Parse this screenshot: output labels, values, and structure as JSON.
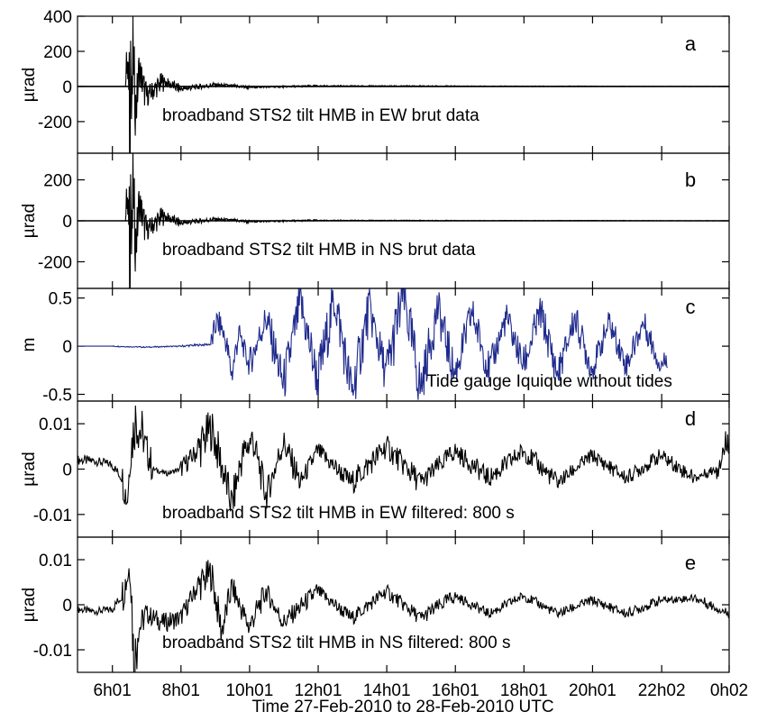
{
  "figure": {
    "xlabel": "Time 27-Feb-2010 to 28-Feb-2010 UTC",
    "xticks": [
      "6h01",
      "8h01",
      "10h01",
      "12h01",
      "14h01",
      "16h01",
      "18h01",
      "20h01",
      "22h02",
      "0h02"
    ]
  },
  "chart_data": [
    {
      "type": "line",
      "panel": "a",
      "ylabel": "µrad",
      "annotation": "broadband STS2 tilt HMB in EW brut data",
      "xlim": [
        5.0,
        24.0
      ],
      "ylim": [
        -380,
        400
      ],
      "yticks": [
        400,
        200,
        0,
        -200
      ],
      "ytick_labels": [
        "400",
        "200",
        "0",
        "-200"
      ],
      "color": "#000000",
      "series": [
        {
          "x": [
            5.0,
            6.4,
            6.45,
            6.48,
            6.5,
            6.52,
            6.55,
            6.58,
            6.62,
            6.7,
            6.8,
            7.0,
            7.5,
            8.0,
            9.0,
            10.0,
            12.0,
            16.0,
            20.0,
            24.0
          ],
          "values": [
            0,
            0,
            150,
            -200,
            370,
            -380,
            300,
            -250,
            200,
            -150,
            100,
            -60,
            30,
            -15,
            10,
            -5,
            3,
            2,
            1,
            0
          ]
        }
      ]
    },
    {
      "type": "line",
      "panel": "b",
      "ylabel": "µrad",
      "annotation": "broadband STS2 tilt HMB in NS  brut data",
      "xlim": [
        5.0,
        24.0
      ],
      "ylim": [
        -330,
        330
      ],
      "yticks": [
        200,
        0,
        -200
      ],
      "ytick_labels": [
        "200",
        "0",
        "-200"
      ],
      "color": "#000000",
      "series": [
        {
          "x": [
            5.0,
            6.4,
            6.45,
            6.48,
            6.5,
            6.52,
            6.55,
            6.58,
            6.62,
            6.7,
            6.8,
            7.0,
            7.5,
            8.0,
            9.0,
            10.0,
            12.0,
            16.0,
            20.0,
            24.0
          ],
          "values": [
            0,
            0,
            120,
            -180,
            310,
            -300,
            260,
            -220,
            180,
            -130,
            90,
            -50,
            25,
            -12,
            8,
            -4,
            2,
            1,
            1,
            0
          ]
        }
      ]
    },
    {
      "type": "line",
      "panel": "c",
      "ylabel": "m",
      "annotation": "Tide gauge Iquique without tides",
      "xlim": [
        5.0,
        24.0
      ],
      "ylim": [
        -0.57,
        0.6
      ],
      "yticks": [
        0.5,
        0,
        -0.5
      ],
      "ytick_labels": [
        "0.5",
        "0",
        "-0.5"
      ],
      "color": "#1f2a8c",
      "series": [
        {
          "x": [
            5.0,
            6.0,
            7.0,
            8.0,
            8.9,
            9.05,
            9.2,
            9.35,
            9.5,
            9.7,
            10.0,
            10.5,
            11.0,
            11.5,
            12.0,
            12.5,
            13.0,
            13.5,
            14.0,
            14.5,
            15.0,
            15.5,
            16.0,
            16.5,
            17.0,
            17.5,
            18.0,
            18.5,
            19.0,
            19.5,
            20.0,
            20.5,
            21.0,
            21.5,
            22.0,
            22.2
          ],
          "values": [
            0.0,
            0.0,
            -0.01,
            0.0,
            0.02,
            0.25,
            0.2,
            0.0,
            -0.3,
            0.15,
            -0.2,
            0.3,
            -0.4,
            0.45,
            -0.35,
            0.5,
            -0.5,
            0.4,
            -0.3,
            0.55,
            -0.45,
            0.4,
            -0.3,
            0.35,
            -0.25,
            0.3,
            -0.2,
            0.35,
            -0.3,
            0.3,
            -0.25,
            0.25,
            -0.2,
            0.25,
            -0.2,
            -0.12
          ]
        }
      ]
    },
    {
      "type": "line",
      "panel": "d",
      "ylabel": "µrad",
      "annotation": "broadband STS2 tilt HMB in EW filtered: 800 s",
      "xlim": [
        5.0,
        24.0
      ],
      "ylim": [
        -0.015,
        0.015
      ],
      "yticks": [
        0.01,
        0,
        -0.01
      ],
      "ytick_labels": [
        "0.01",
        "0",
        "-0.01"
      ],
      "color": "#000000",
      "series": [
        {
          "x": [
            5.0,
            5.5,
            6.0,
            6.3,
            6.45,
            6.55,
            6.7,
            6.9,
            7.2,
            7.6,
            8.0,
            8.5,
            8.9,
            9.2,
            9.5,
            9.8,
            10.1,
            10.5,
            11.0,
            11.5,
            12.0,
            13.0,
            14.0,
            15.0,
            16.0,
            17.0,
            18.0,
            19.0,
            20.0,
            21.0,
            22.0,
            23.0,
            23.6,
            24.0
          ],
          "values": [
            0.002,
            0.0018,
            0.001,
            -0.002,
            -0.007,
            0.004,
            0.0115,
            0.007,
            0.0,
            -0.001,
            0.0,
            0.004,
            0.009,
            0.001,
            -0.008,
            0.003,
            0.0068,
            -0.006,
            0.006,
            -0.003,
            0.004,
            -0.003,
            0.005,
            -0.003,
            0.004,
            -0.002,
            0.004,
            -0.003,
            0.003,
            -0.002,
            0.003,
            -0.002,
            0.0,
            0.007
          ]
        }
      ]
    },
    {
      "type": "line",
      "panel": "e",
      "ylabel": "µrad",
      "annotation": "broadband STS2 tilt HMB in NS  filtered: 800 s",
      "xlim": [
        5.0,
        24.0
      ],
      "ylim": [
        -0.015,
        0.015
      ],
      "yticks": [
        0.01,
        0,
        -0.01
      ],
      "ytick_labels": [
        "0.01",
        "0",
        "-0.01"
      ],
      "color": "#000000",
      "series": [
        {
          "x": [
            5.0,
            5.5,
            6.0,
            6.3,
            6.5,
            6.55,
            6.65,
            6.75,
            7.0,
            7.5,
            8.0,
            8.5,
            8.9,
            9.2,
            9.5,
            10.0,
            10.5,
            11.0,
            12.0,
            13.0,
            14.0,
            15.0,
            16.0,
            17.0,
            18.0,
            19.0,
            20.0,
            21.0,
            22.0,
            23.0,
            24.0
          ],
          "values": [
            -0.001,
            -0.0015,
            -0.001,
            0.002,
            0.008,
            0.0088,
            -0.015,
            -0.006,
            -0.002,
            -0.004,
            -0.003,
            0.004,
            0.007,
            -0.006,
            0.004,
            -0.005,
            0.003,
            -0.004,
            0.003,
            -0.003,
            0.003,
            -0.003,
            0.002,
            -0.002,
            0.002,
            -0.002,
            0.001,
            -0.002,
            0.001,
            0.0015,
            -0.002
          ]
        }
      ]
    }
  ]
}
